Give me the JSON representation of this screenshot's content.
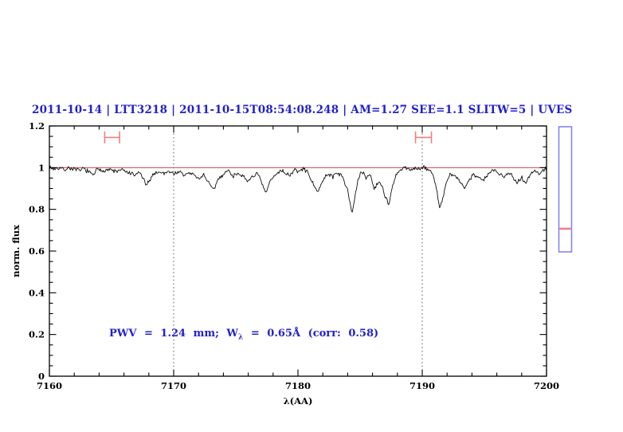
{
  "title": {
    "text": "2011-10-14 | LTT3218 | 2011-10-15T08:54:08.248 | AM=1.27 SEE=1.1 SLITW=5 | UVES"
  },
  "annotation": {
    "prefix": "PWV = 1.24 mm; W",
    "sub": "λ",
    "suffix": " = 0.65Å (corr: 0.58)"
  },
  "colors": {
    "text_accent": "#2121cd",
    "continuum_line": "#d94545",
    "range_marker": "#f08080",
    "indicator_border": "#8585f2",
    "indicator_line": "#f08080",
    "spectrum": "#101010",
    "frame": "#000000"
  },
  "right_indicator": {
    "line_fraction_from_top": 0.815
  },
  "chart_data": {
    "type": "line",
    "title": "2011-10-14 | LTT3218 | 2011-10-15T08:54:08.248 | AM=1.27 SEE=1.1 SLITW=5 | UVES",
    "xlabel": "λ(AA)",
    "ylabel": "norm. flux",
    "xlim": [
      7160,
      7200
    ],
    "ylim": [
      0,
      1.2
    ],
    "grid": false,
    "x_ticks": {
      "major": [
        7160,
        7170,
        7180,
        7190,
        7200
      ],
      "labels": [
        "7160",
        "7170",
        "7180",
        "7190",
        "7200"
      ],
      "minor_step": 2
    },
    "y_ticks": {
      "major": [
        0,
        0.2,
        0.4,
        0.6,
        0.8,
        1,
        1.2
      ],
      "labels": [
        "0",
        "0.2",
        "0.4",
        "0.6",
        "0.8",
        "1",
        "1.2"
      ],
      "minor_step": 0.05
    },
    "dotted_guides_x": [
      7170,
      7190
    ],
    "continuum_level": 1.0,
    "range_markers": [
      {
        "x_center": 7165.05,
        "x_halfwidth": 0.6,
        "y": 1.145
      },
      {
        "x_center": 7190.1,
        "x_halfwidth": 0.64,
        "y": 1.145
      }
    ],
    "series": [
      {
        "name": "normalized telluric spectrum",
        "color": "#101010",
        "anchors": [
          [
            7160.0,
            1.0
          ],
          [
            7160.4,
            0.995
          ],
          [
            7160.8,
            1.0
          ],
          [
            7161.2,
            0.99
          ],
          [
            7161.6,
            1.0
          ],
          [
            7162.0,
            0.992
          ],
          [
            7162.4,
            0.985
          ],
          [
            7162.8,
            0.996
          ],
          [
            7163.2,
            0.978
          ],
          [
            7163.5,
            0.962
          ],
          [
            7163.8,
            0.99
          ],
          [
            7164.2,
            0.985
          ],
          [
            7164.6,
            0.992
          ],
          [
            7165.0,
            0.988
          ],
          [
            7165.4,
            0.98
          ],
          [
            7165.8,
            0.99
          ],
          [
            7166.2,
            0.978
          ],
          [
            7166.6,
            0.97
          ],
          [
            7166.9,
            0.96
          ],
          [
            7167.2,
            0.98
          ],
          [
            7167.5,
            0.955
          ],
          [
            7167.8,
            0.91
          ],
          [
            7168.1,
            0.945
          ],
          [
            7168.4,
            0.972
          ],
          [
            7168.8,
            0.98
          ],
          [
            7169.2,
            0.972
          ],
          [
            7169.6,
            0.985
          ],
          [
            7170.0,
            0.97
          ],
          [
            7170.4,
            0.982
          ],
          [
            7170.8,
            0.962
          ],
          [
            7171.2,
            0.975
          ],
          [
            7171.6,
            0.968
          ],
          [
            7172.0,
            0.944
          ],
          [
            7172.4,
            0.968
          ],
          [
            7172.8,
            0.928
          ],
          [
            7173.2,
            0.89
          ],
          [
            7173.6,
            0.948
          ],
          [
            7174.0,
            0.968
          ],
          [
            7174.4,
            0.988
          ],
          [
            7174.8,
            0.958
          ],
          [
            7175.2,
            0.978
          ],
          [
            7175.6,
            0.955
          ],
          [
            7175.9,
            0.93
          ],
          [
            7176.3,
            0.958
          ],
          [
            7176.7,
            0.97
          ],
          [
            7177.0,
            0.94
          ],
          [
            7177.4,
            0.874
          ],
          [
            7177.8,
            0.94
          ],
          [
            7178.2,
            0.965
          ],
          [
            7178.6,
            0.988
          ],
          [
            7179.0,
            0.975
          ],
          [
            7179.3,
            0.962
          ],
          [
            7179.7,
            0.988
          ],
          [
            7180.1,
            0.982
          ],
          [
            7180.5,
            0.995
          ],
          [
            7180.9,
            0.968
          ],
          [
            7181.2,
            0.92
          ],
          [
            7181.5,
            0.885
          ],
          [
            7181.8,
            0.912
          ],
          [
            7182.1,
            0.945
          ],
          [
            7182.4,
            0.972
          ],
          [
            7182.8,
            0.958
          ],
          [
            7183.2,
            0.978
          ],
          [
            7183.6,
            0.952
          ],
          [
            7184.0,
            0.898
          ],
          [
            7184.35,
            0.78
          ],
          [
            7184.6,
            0.862
          ],
          [
            7184.85,
            0.94
          ],
          [
            7185.1,
            0.982
          ],
          [
            7185.5,
            0.952
          ],
          [
            7185.8,
            0.968
          ],
          [
            7186.15,
            0.9
          ],
          [
            7186.5,
            0.932
          ],
          [
            7186.8,
            0.908
          ],
          [
            7187.0,
            0.868
          ],
          [
            7187.3,
            0.82
          ],
          [
            7187.6,
            0.905
          ],
          [
            7187.9,
            0.962
          ],
          [
            7188.2,
            0.988
          ],
          [
            7188.6,
            0.998
          ],
          [
            7189.0,
            0.99
          ],
          [
            7189.4,
            1.0
          ],
          [
            7189.8,
            0.992
          ],
          [
            7190.2,
            1.0
          ],
          [
            7190.6,
            0.988
          ],
          [
            7190.9,
            0.96
          ],
          [
            7191.2,
            0.885
          ],
          [
            7191.4,
            0.805
          ],
          [
            7191.7,
            0.862
          ],
          [
            7192.0,
            0.94
          ],
          [
            7192.3,
            0.968
          ],
          [
            7192.7,
            0.955
          ],
          [
            7193.0,
            0.938
          ],
          [
            7193.4,
            0.9
          ],
          [
            7193.8,
            0.948
          ],
          [
            7194.2,
            0.968
          ],
          [
            7194.6,
            0.952
          ],
          [
            7194.9,
            0.937
          ],
          [
            7195.3,
            0.968
          ],
          [
            7195.7,
            0.988
          ],
          [
            7196.1,
            0.972
          ],
          [
            7196.6,
            0.962
          ],
          [
            7197.0,
            0.978
          ],
          [
            7197.3,
            0.952
          ],
          [
            7197.6,
            0.93
          ],
          [
            7198.0,
            0.955
          ],
          [
            7198.3,
            0.925
          ],
          [
            7198.7,
            0.968
          ],
          [
            7199.0,
            0.985
          ],
          [
            7199.4,
            0.972
          ],
          [
            7199.8,
            0.99
          ],
          [
            7200.0,
            0.995
          ]
        ]
      }
    ]
  }
}
